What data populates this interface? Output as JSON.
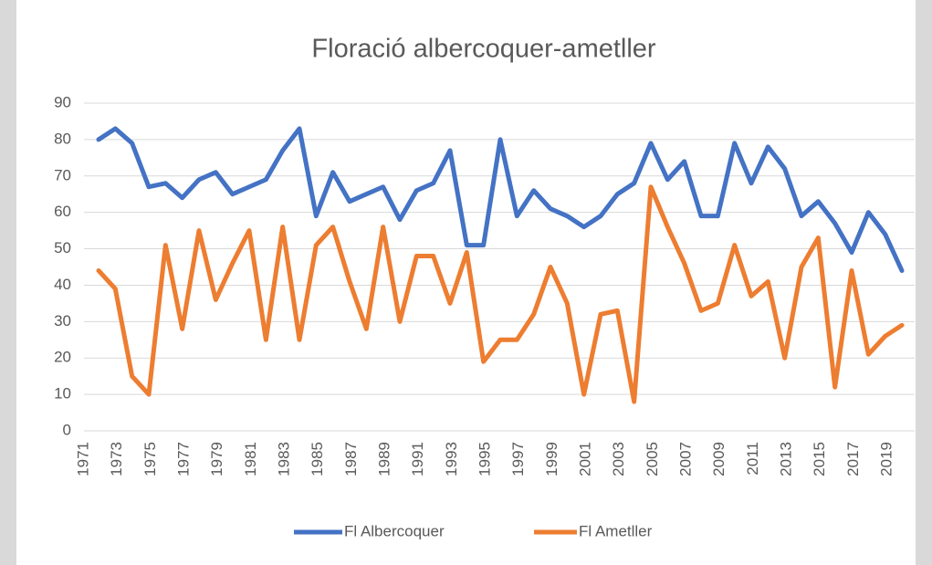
{
  "chart_data": {
    "type": "line",
    "title": "Floració albercoquer-ametller",
    "categories": [
      "1971",
      null,
      "1973",
      null,
      "1975",
      null,
      "1977",
      null,
      "1979",
      null,
      "1981",
      null,
      "1983",
      null,
      "1985",
      null,
      "1987",
      null,
      "1989",
      null,
      "1991",
      null,
      "1993",
      null,
      "1995",
      null,
      "1997",
      null,
      "1999",
      null,
      "2001",
      null,
      "2003",
      null,
      "2005",
      null,
      "2007",
      null,
      "2009",
      null,
      "2011",
      null,
      "2013",
      null,
      "2015",
      null,
      "2017",
      null,
      "2019"
    ],
    "series": [
      {
        "name": "Fl Albercoquer",
        "color": "#4472c4",
        "values": [
          80,
          83,
          79,
          67,
          68,
          64,
          69,
          71,
          65,
          67,
          69,
          77,
          83,
          59,
          71,
          63,
          65,
          67,
          58,
          66,
          68,
          77,
          51,
          51,
          80,
          59,
          66,
          61,
          59,
          56,
          59,
          65,
          68,
          79,
          69,
          74,
          59,
          59,
          79,
          68,
          78,
          72,
          59,
          63,
          57,
          49,
          60,
          54,
          44
        ]
      },
      {
        "name": "Fl Ametller",
        "color": "#ed7d31",
        "values": [
          44,
          39,
          15,
          10,
          51,
          28,
          55,
          36,
          46,
          55,
          25,
          56,
          25,
          51,
          56,
          41,
          28,
          56,
          30,
          48,
          48,
          35,
          49,
          19,
          25,
          25,
          32,
          45,
          35,
          10,
          32,
          33,
          8,
          67,
          56,
          46,
          33,
          35,
          51,
          37,
          41,
          20,
          45,
          53,
          12,
          44,
          21,
          26,
          29
        ]
      }
    ],
    "ylim": [
      0,
      90
    ],
    "yticks": [
      0,
      10,
      20,
      30,
      40,
      50,
      60,
      70,
      80,
      90
    ],
    "grid": true,
    "legend": "bottom"
  }
}
